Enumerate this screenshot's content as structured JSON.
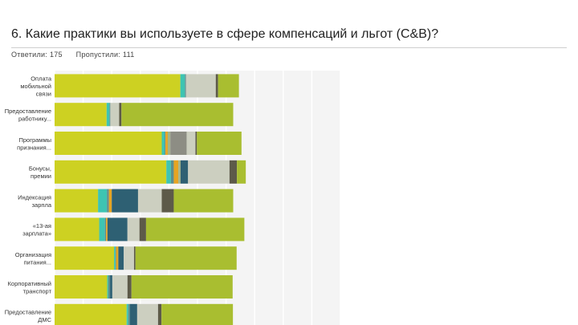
{
  "survey": {
    "question": "6. Какие практики вы используете в сфере компенсаций и льгот (C&B)?",
    "answered": "Ответили: 175",
    "skipped": "Пропустили: 111"
  },
  "chart_data": {
    "type": "bar",
    "orientation": "horizontal",
    "stacked": true,
    "grid": true,
    "xlim": [
      0,
      100
    ],
    "categories": [
      [
        "Оплата",
        "мобильной",
        "связи"
      ],
      [
        "Предоставление",
        "работнику..."
      ],
      [
        "Программы",
        "признания..."
      ],
      [
        "Бонусы,",
        "премии"
      ],
      [
        "Индексация",
        "зарпла"
      ],
      [
        "«13-ая",
        "зарплата»"
      ],
      [
        "Организация",
        "питания..."
      ],
      [
        "Корпоративный",
        "транспорт"
      ],
      [
        "Предоставление",
        "ДМС"
      ]
    ],
    "series": [
      {
        "color": "#cdd122",
        "values": [
          44.0,
          18.2,
          37.5,
          39.1,
          15.2,
          15.6,
          20.8,
          18.4,
          25.2
        ]
      },
      {
        "color": "#3ec4b2",
        "values": [
          1.6,
          1.0,
          1.0,
          1.6,
          3.1,
          2.0,
          0.5,
          0.4,
          0.6
        ]
      },
      {
        "color": "#5c8e8f",
        "values": [
          0.4,
          0.3,
          0.3,
          1.0,
          0.7,
          0.4,
          0.2,
          0.6,
          0.6
        ]
      },
      {
        "color": "#e6a422",
        "values": [
          0.0,
          0.0,
          0.8,
          1.6,
          1.0,
          0.5,
          0.8,
          0.0,
          0.0
        ]
      },
      {
        "color": "#a3b38a",
        "values": [
          0.0,
          0.0,
          0.9,
          0.8,
          0.0,
          0.0,
          0.0,
          0.0,
          0.0
        ]
      },
      {
        "color": "#2e6073",
        "values": [
          0.0,
          0.0,
          0.0,
          2.6,
          9.2,
          7.0,
          1.9,
          0.8,
          2.5
        ]
      },
      {
        "color": "#8d8d84",
        "values": [
          0.0,
          0.0,
          5.7,
          0.0,
          0.0,
          0.0,
          0.0,
          0.0,
          0.0
        ]
      },
      {
        "color": "#cccfc0",
        "values": [
          10.4,
          3.1,
          3.1,
          14.5,
          8.3,
          4.2,
          3.6,
          5.3,
          7.3
        ]
      },
      {
        "color": "#5d5a49",
        "values": [
          0.8,
          0.8,
          0.5,
          2.6,
          4.2,
          2.3,
          0.5,
          1.4,
          1.2
        ]
      },
      {
        "color": "#a9be30",
        "values": [
          7.3,
          39.1,
          15.6,
          3.1,
          20.8,
          34.4,
          35.4,
          35.4,
          25.0
        ]
      }
    ]
  }
}
